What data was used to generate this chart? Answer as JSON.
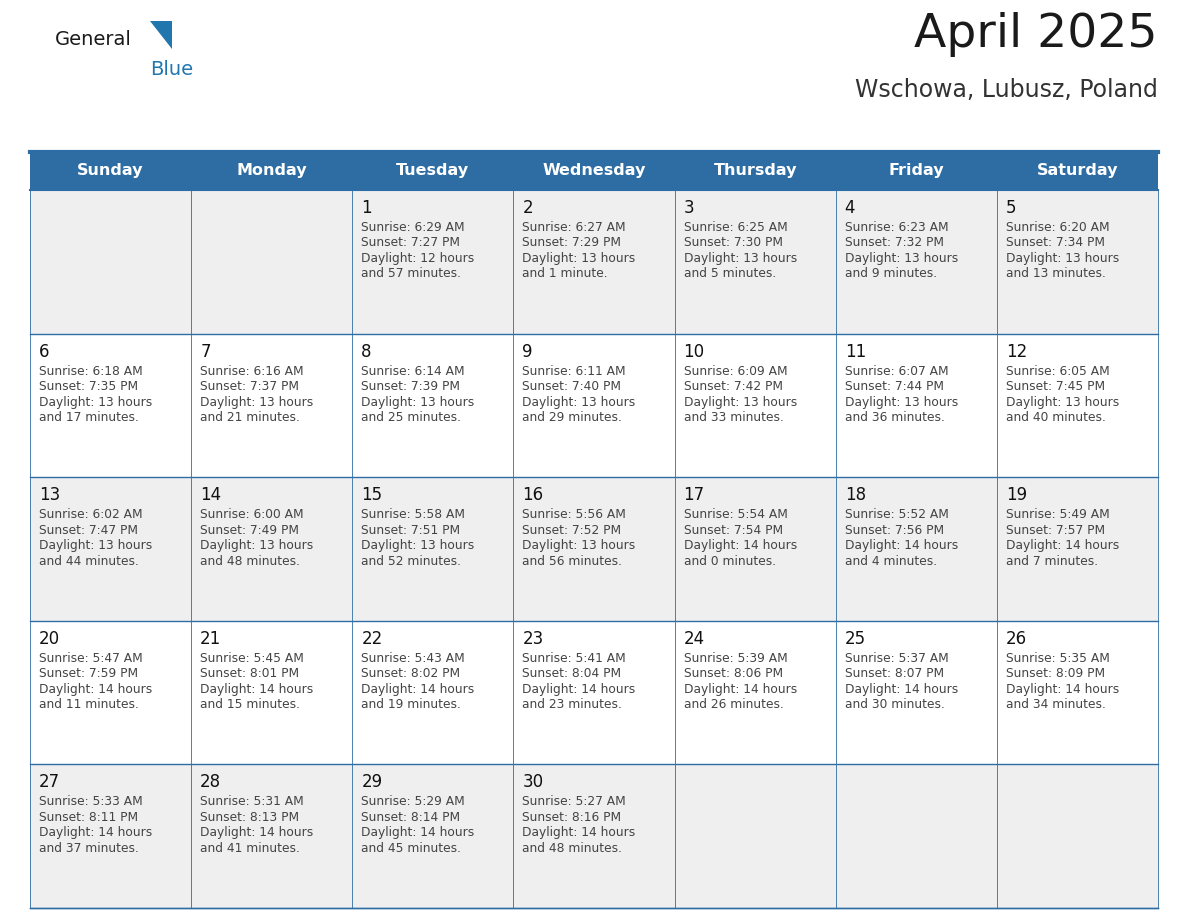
{
  "title": "April 2025",
  "subtitle": "Wschowa, Lubusz, Poland",
  "header_bg": "#2E6DA4",
  "header_text_color": "#FFFFFF",
  "cell_bg_even": "#EFEFEF",
  "cell_bg_odd": "#FFFFFF",
  "cell_border_color": "#2E6DA4",
  "day_headers": [
    "Sunday",
    "Monday",
    "Tuesday",
    "Wednesday",
    "Thursday",
    "Friday",
    "Saturday"
  ],
  "title_color": "#1a1a1a",
  "subtitle_color": "#333333",
  "day_number_color": "#111111",
  "content_color": "#444444",
  "logo_general_color": "#1a1a1a",
  "logo_blue_color": "#2176AE",
  "calendar_data": [
    [
      {
        "day": "",
        "sunrise": "",
        "sunset": "",
        "daylight": ""
      },
      {
        "day": "",
        "sunrise": "",
        "sunset": "",
        "daylight": ""
      },
      {
        "day": "1",
        "sunrise": "6:29 AM",
        "sunset": "7:27 PM",
        "daylight": "12 hours and 57 minutes."
      },
      {
        "day": "2",
        "sunrise": "6:27 AM",
        "sunset": "7:29 PM",
        "daylight": "13 hours and 1 minute."
      },
      {
        "day": "3",
        "sunrise": "6:25 AM",
        "sunset": "7:30 PM",
        "daylight": "13 hours and 5 minutes."
      },
      {
        "day": "4",
        "sunrise": "6:23 AM",
        "sunset": "7:32 PM",
        "daylight": "13 hours and 9 minutes."
      },
      {
        "day": "5",
        "sunrise": "6:20 AM",
        "sunset": "7:34 PM",
        "daylight": "13 hours and 13 minutes."
      }
    ],
    [
      {
        "day": "6",
        "sunrise": "6:18 AM",
        "sunset": "7:35 PM",
        "daylight": "13 hours and 17 minutes."
      },
      {
        "day": "7",
        "sunrise": "6:16 AM",
        "sunset": "7:37 PM",
        "daylight": "13 hours and 21 minutes."
      },
      {
        "day": "8",
        "sunrise": "6:14 AM",
        "sunset": "7:39 PM",
        "daylight": "13 hours and 25 minutes."
      },
      {
        "day": "9",
        "sunrise": "6:11 AM",
        "sunset": "7:40 PM",
        "daylight": "13 hours and 29 minutes."
      },
      {
        "day": "10",
        "sunrise": "6:09 AM",
        "sunset": "7:42 PM",
        "daylight": "13 hours and 33 minutes."
      },
      {
        "day": "11",
        "sunrise": "6:07 AM",
        "sunset": "7:44 PM",
        "daylight": "13 hours and 36 minutes."
      },
      {
        "day": "12",
        "sunrise": "6:05 AM",
        "sunset": "7:45 PM",
        "daylight": "13 hours and 40 minutes."
      }
    ],
    [
      {
        "day": "13",
        "sunrise": "6:02 AM",
        "sunset": "7:47 PM",
        "daylight": "13 hours and 44 minutes."
      },
      {
        "day": "14",
        "sunrise": "6:00 AM",
        "sunset": "7:49 PM",
        "daylight": "13 hours and 48 minutes."
      },
      {
        "day": "15",
        "sunrise": "5:58 AM",
        "sunset": "7:51 PM",
        "daylight": "13 hours and 52 minutes."
      },
      {
        "day": "16",
        "sunrise": "5:56 AM",
        "sunset": "7:52 PM",
        "daylight": "13 hours and 56 minutes."
      },
      {
        "day": "17",
        "sunrise": "5:54 AM",
        "sunset": "7:54 PM",
        "daylight": "14 hours and 0 minutes."
      },
      {
        "day": "18",
        "sunrise": "5:52 AM",
        "sunset": "7:56 PM",
        "daylight": "14 hours and 4 minutes."
      },
      {
        "day": "19",
        "sunrise": "5:49 AM",
        "sunset": "7:57 PM",
        "daylight": "14 hours and 7 minutes."
      }
    ],
    [
      {
        "day": "20",
        "sunrise": "5:47 AM",
        "sunset": "7:59 PM",
        "daylight": "14 hours and 11 minutes."
      },
      {
        "day": "21",
        "sunrise": "5:45 AM",
        "sunset": "8:01 PM",
        "daylight": "14 hours and 15 minutes."
      },
      {
        "day": "22",
        "sunrise": "5:43 AM",
        "sunset": "8:02 PM",
        "daylight": "14 hours and 19 minutes."
      },
      {
        "day": "23",
        "sunrise": "5:41 AM",
        "sunset": "8:04 PM",
        "daylight": "14 hours and 23 minutes."
      },
      {
        "day": "24",
        "sunrise": "5:39 AM",
        "sunset": "8:06 PM",
        "daylight": "14 hours and 26 minutes."
      },
      {
        "day": "25",
        "sunrise": "5:37 AM",
        "sunset": "8:07 PM",
        "daylight": "14 hours and 30 minutes."
      },
      {
        "day": "26",
        "sunrise": "5:35 AM",
        "sunset": "8:09 PM",
        "daylight": "14 hours and 34 minutes."
      }
    ],
    [
      {
        "day": "27",
        "sunrise": "5:33 AM",
        "sunset": "8:11 PM",
        "daylight": "14 hours and 37 minutes."
      },
      {
        "day": "28",
        "sunrise": "5:31 AM",
        "sunset": "8:13 PM",
        "daylight": "14 hours and 41 minutes."
      },
      {
        "day": "29",
        "sunrise": "5:29 AM",
        "sunset": "8:14 PM",
        "daylight": "14 hours and 45 minutes."
      },
      {
        "day": "30",
        "sunrise": "5:27 AM",
        "sunset": "8:16 PM",
        "daylight": "14 hours and 48 minutes."
      },
      {
        "day": "",
        "sunrise": "",
        "sunset": "",
        "daylight": ""
      },
      {
        "day": "",
        "sunrise": "",
        "sunset": "",
        "daylight": ""
      },
      {
        "day": "",
        "sunrise": "",
        "sunset": "",
        "daylight": ""
      }
    ]
  ]
}
